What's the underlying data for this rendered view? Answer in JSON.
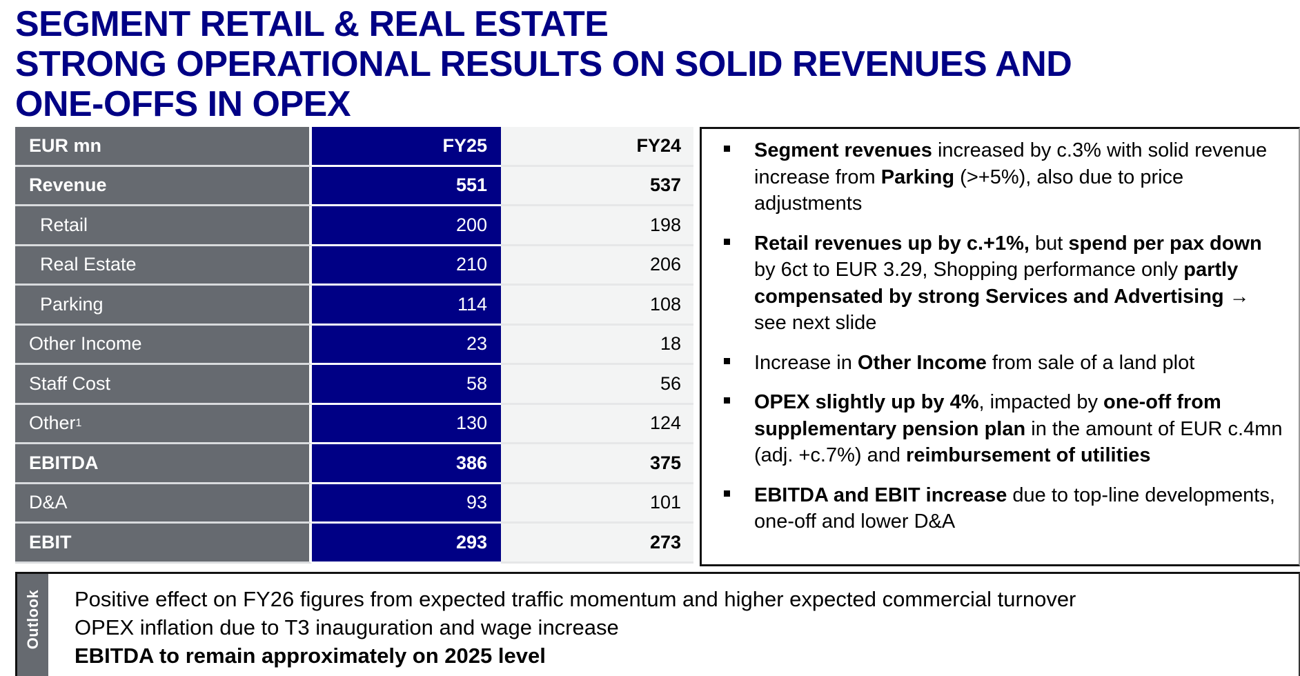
{
  "title": {
    "line1": "SEGMENT RETAIL & REAL ESTATE",
    "line2": "STRONG OPERATIONAL RESULTS ON SOLID REVENUES AND",
    "line3": "ONE-OFFS IN OPEX"
  },
  "table": {
    "header": {
      "label": "EUR mn",
      "fy25": "FY25",
      "fy24": "FY24"
    },
    "rows": [
      {
        "label": "Revenue",
        "fy25": "551",
        "fy24": "537"
      },
      {
        "label": "Retail",
        "fy25": "200",
        "fy24": "198"
      },
      {
        "label": "Real Estate",
        "fy25": "210",
        "fy24": "206"
      },
      {
        "label": "Parking",
        "fy25": "114",
        "fy24": "108"
      },
      {
        "label": "Other Income",
        "fy25": "23",
        "fy24": "18"
      },
      {
        "label": "Staff Cost",
        "fy25": "58",
        "fy24": "56"
      },
      {
        "label": "Other",
        "footnote": "1",
        "fy25": "130",
        "fy24": "124"
      },
      {
        "label": "EBITDA",
        "fy25": "386",
        "fy24": "375"
      },
      {
        "label": "D&A",
        "fy25": "93",
        "fy24": "101"
      },
      {
        "label": "EBIT",
        "fy25": "293",
        "fy24": "273"
      }
    ]
  },
  "bullets": [
    {
      "b1": "Segment revenues",
      "t1": " increased by c.3% with solid revenue increase from ",
      "b2": "Parking",
      "t2": " (>+5%), also due to price adjustments"
    },
    {
      "b1": "Retail revenues up by c.+1%,",
      "t1": " but ",
      "b2": "spend per pax down",
      "t2": " by 6ct to EUR 3.29, Shopping performance only ",
      "b3": "partly compensated by strong Services and Advertising",
      "t3": " → see next slide"
    },
    {
      "t0": "Increase in ",
      "b1": "Other Income",
      "t1": " from sale of a land plot"
    },
    {
      "b1": "OPEX slightly up by 4%",
      "t1": ", impacted by ",
      "b2": "one-off from supplementary pension plan",
      "t2": " in the amount of EUR c.4mn (adj. +c.7%) and ",
      "b3": "reimbursement of utilities"
    },
    {
      "b1": "EBITDA and EBIT increase",
      "t1": " due to top-line developments, one-off and lower D&A"
    }
  ],
  "outlook": {
    "label": "Outlook",
    "lines": [
      "Positive effect on FY26 figures from expected traffic momentum and higher expected commercial turnover",
      "OPEX inflation due to T3 inauguration and wage increase",
      "EBITDA to remain approximately on 2025 level"
    ]
  },
  "colors": {
    "title_blue": "#000085",
    "fy25_column": "#000085",
    "label_column": "#666a70",
    "fy24_column": "#f3f4f4"
  }
}
